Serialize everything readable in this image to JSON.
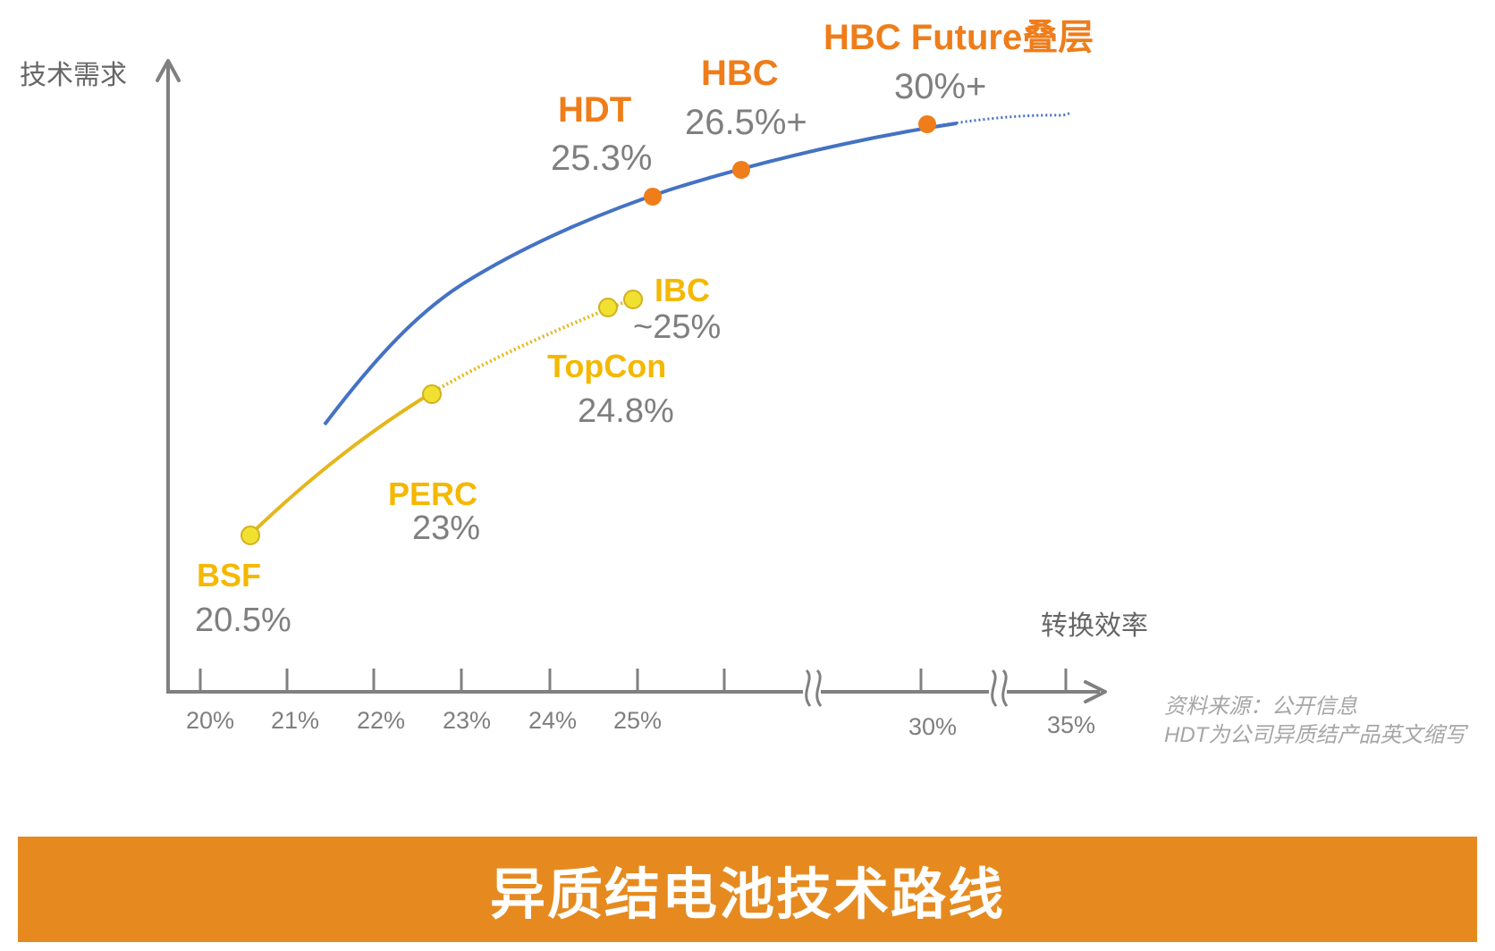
{
  "chart_data": {
    "type": "line",
    "ylabel": "技术需求",
    "xlabel": "转换效率",
    "x_ticks": [
      "20%",
      "21%",
      "22%",
      "23%",
      "24%",
      "25%",
      "30%",
      "35%"
    ],
    "axis_breaks": [
      "between 25% and 30%",
      "between 30% and 35%"
    ],
    "grid": false,
    "legend": "none",
    "series": [
      {
        "color": "#E5B61C",
        "style": "solid then dotted",
        "points": [
          {
            "label": "BSF",
            "value": "20.5%"
          },
          {
            "label": "PERC",
            "value": "23%"
          },
          {
            "label": "TopCon",
            "value": "24.8%"
          },
          {
            "label": "IBC",
            "value": "~25%"
          }
        ]
      },
      {
        "color": "#4472C4",
        "style": "solid",
        "points": [
          {
            "label": "HDT",
            "value": "25.3%"
          },
          {
            "label": "HBC",
            "value": "26.5%+"
          },
          {
            "label": "HBC Future叠层",
            "value": "30%+"
          }
        ]
      }
    ],
    "colors": {
      "axis": "#808080",
      "blue_curve": "#4472C4",
      "yellow_curve": "#E5B61C",
      "yellow_marker": "#F0E030",
      "orange_marker": "#EE7D1A",
      "orange_label": "#EE7D1A",
      "yellow_label": "#F5B800",
      "value_text": "#7F7F7F"
    }
  },
  "source_note": {
    "line1": "资料来源：公开信息",
    "line2": "HDT为公司异质结产品英文缩写"
  },
  "banner": {
    "title": "异质结电池技术路线",
    "color": "#E68A1F"
  }
}
